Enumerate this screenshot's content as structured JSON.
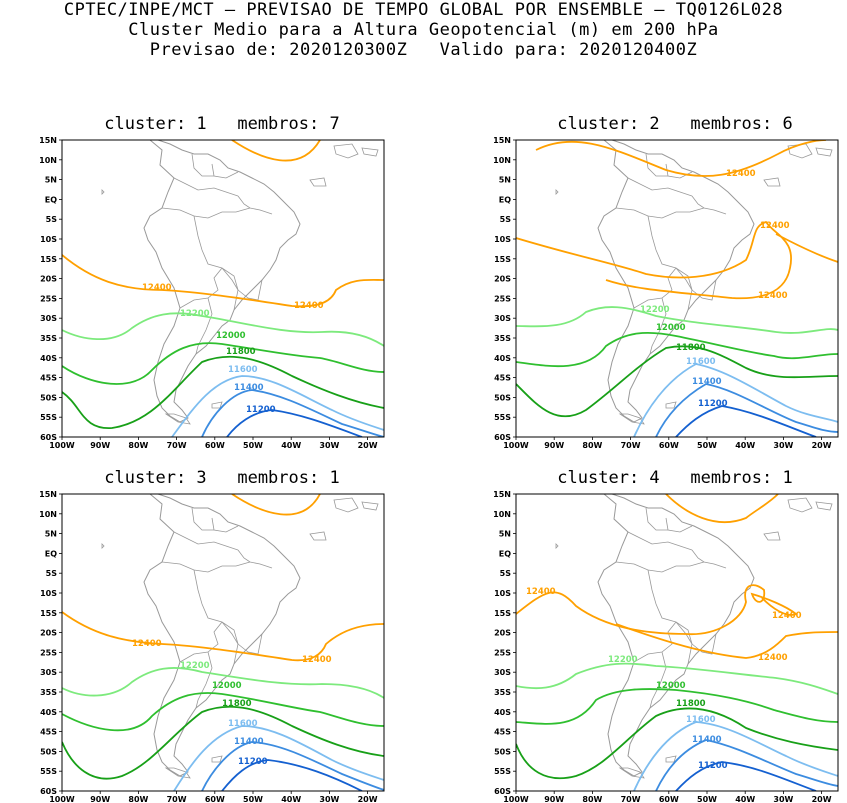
{
  "header": {
    "line1": "CPTEC/INPE/MCT — PREVISAO DE TEMPO GLOBAL POR ENSEMBLE — TQ0126L028",
    "line2": "Cluster Medio para a Altura Geopotencial (m) em 200 hPa",
    "line3": "Previsao de: 2020120300Z   Valido para: 2020120400Z"
  },
  "lat_ticks": [
    "15N",
    "10N",
    "5N",
    "EQ",
    "5S",
    "10S",
    "15S",
    "20S",
    "25S",
    "30S",
    "35S",
    "40S",
    "45S",
    "50S",
    "55S",
    "60S"
  ],
  "lon_ticks": [
    "100W",
    "90W",
    "80W",
    "70W",
    "60W",
    "50W",
    "40W",
    "30W",
    "20W"
  ],
  "colors": {
    "12400": "#ffa000",
    "12200": "#7dea7d",
    "12000": "#2fbf2f",
    "11800": "#18a018",
    "11600": "#7dbdf0",
    "11400": "#3c8ce0",
    "11200": "#1460d0",
    "coast": "#999999"
  },
  "panels": [
    {
      "title": "cluster: 1   membros: 7",
      "contour_labels": [
        "12400",
        "12400",
        "12200",
        "12000",
        "11800",
        "11600",
        "11400",
        "11200"
      ]
    },
    {
      "title": "cluster: 2   membros: 6",
      "contour_labels": [
        "12400",
        "12400",
        "12400",
        "12200",
        "12000",
        "11800",
        "11600",
        "11400",
        "11200"
      ]
    },
    {
      "title": "cluster: 3   membros: 1",
      "contour_labels": [
        "12400",
        "12400",
        "12200",
        "12000",
        "11800",
        "11600",
        "11400",
        "11200"
      ]
    },
    {
      "title": "cluster: 4   membros: 1",
      "contour_labels": [
        "12400",
        "12400",
        "12400",
        "12200",
        "12000",
        "11800",
        "11600",
        "11400",
        "11200"
      ]
    }
  ]
}
